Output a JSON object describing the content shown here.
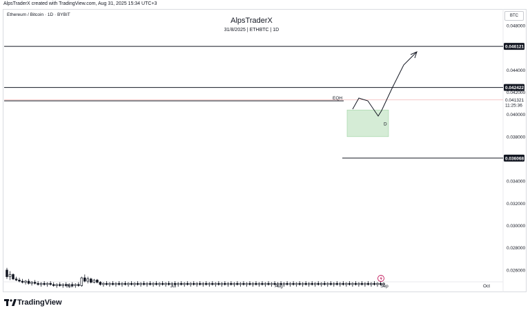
{
  "header": {
    "attribution": "AlpsTraderX created with TradingView.com, Aug 31, 2025 15:34 UTC+3",
    "symbol_line": "Ethereum / Bitcoin · 1D · BYBIT",
    "chart_title": "AlpsTraderX",
    "chart_subtitle": "31/8/2025 | ETHBTC | 1D",
    "currency_label": "BTC"
  },
  "footer": {
    "brand": "TradingView",
    "logo_text": "17"
  },
  "colors": {
    "up": "#131722",
    "down": "#131722",
    "zone_fill": "#d5ecd6",
    "zone_border": "#9fd3a3",
    "level_line": "#131722",
    "current_price_line": "#f4b6b6"
  },
  "chart_data": {
    "type": "candlestick",
    "y_axis": {
      "min": 0.025,
      "max": 0.0493,
      "ticks": [
        "0.048000",
        "0.044000",
        "0.042000",
        "0.040000",
        "0.038000",
        "0.034000",
        "0.032000",
        "0.030000",
        "0.028000",
        "0.026000"
      ]
    },
    "x_axis": {
      "ticks": [
        "Jun",
        "Jul",
        "Aug",
        "Sep",
        "Oct"
      ]
    },
    "levels": [
      {
        "value": 0.046121,
        "label": "0.046121"
      },
      {
        "value": 0.042422,
        "label": "0.042422"
      },
      {
        "value": 0.036068,
        "label": "0.036068"
      }
    ],
    "current_price": {
      "value": 0.041321,
      "label": "0.041321",
      "countdown": "11:25:36"
    },
    "eqh": {
      "label": "EQH",
      "value": 0.04122
    },
    "zone": {
      "label": "D",
      "from": 0.038,
      "to": 0.0404
    },
    "candles": [
      {
        "o": 0.026,
        "h": 0.0262,
        "l": 0.0252,
        "c": 0.0254
      },
      {
        "o": 0.0254,
        "h": 0.0259,
        "l": 0.0251,
        "c": 0.0256
      },
      {
        "o": 0.0256,
        "h": 0.0257,
        "l": 0.0251,
        "c": 0.0252
      },
      {
        "o": 0.0252,
        "h": 0.0254,
        "l": 0.025,
        "c": 0.0251
      },
      {
        "o": 0.0251,
        "h": 0.0253,
        "l": 0.0249,
        "c": 0.025
      },
      {
        "o": 0.025,
        "h": 0.0252,
        "l": 0.0248,
        "c": 0.0249
      },
      {
        "o": 0.0249,
        "h": 0.0251,
        "l": 0.0247,
        "c": 0.025
      },
      {
        "o": 0.025,
        "h": 0.0252,
        "l": 0.0247,
        "c": 0.0248
      },
      {
        "o": 0.0248,
        "h": 0.025,
        "l": 0.0246,
        "c": 0.0249
      },
      {
        "o": 0.0249,
        "h": 0.0251,
        "l": 0.0247,
        "c": 0.0248
      },
      {
        "o": 0.0248,
        "h": 0.025,
        "l": 0.0246,
        "c": 0.0247
      },
      {
        "o": 0.0247,
        "h": 0.0249,
        "l": 0.0245,
        "c": 0.0248
      },
      {
        "o": 0.0248,
        "h": 0.025,
        "l": 0.0246,
        "c": 0.0247
      },
      {
        "o": 0.0247,
        "h": 0.0249,
        "l": 0.0245,
        "c": 0.0248
      },
      {
        "o": 0.0248,
        "h": 0.025,
        "l": 0.0246,
        "c": 0.0247
      },
      {
        "o": 0.0247,
        "h": 0.0249,
        "l": 0.0245,
        "c": 0.0246
      },
      {
        "o": 0.0246,
        "h": 0.0248,
        "l": 0.0244,
        "c": 0.0247
      },
      {
        "o": 0.0247,
        "h": 0.0249,
        "l": 0.0245,
        "c": 0.0246
      },
      {
        "o": 0.0246,
        "h": 0.0248,
        "l": 0.0244,
        "c": 0.0247
      },
      {
        "o": 0.0247,
        "h": 0.0249,
        "l": 0.0245,
        "c": 0.0246
      },
      {
        "o": 0.0246,
        "h": 0.0248,
        "l": 0.0244,
        "c": 0.0247
      },
      {
        "o": 0.0247,
        "h": 0.0249,
        "l": 0.0245,
        "c": 0.0246
      },
      {
        "o": 0.0246,
        "h": 0.0248,
        "l": 0.0244,
        "c": 0.0247
      },
      {
        "o": 0.0247,
        "h": 0.0249,
        "l": 0.0245,
        "c": 0.0246
      },
      {
        "o": 0.0246,
        "h": 0.0254,
        "l": 0.0245,
        "c": 0.0253
      },
      {
        "o": 0.0253,
        "h": 0.0256,
        "l": 0.0249,
        "c": 0.025
      },
      {
        "o": 0.025,
        "h": 0.0254,
        "l": 0.0248,
        "c": 0.0252
      },
      {
        "o": 0.0252,
        "h": 0.0253,
        "l": 0.0248,
        "c": 0.0249
      },
      {
        "o": 0.0249,
        "h": 0.0252,
        "l": 0.0248,
        "c": 0.0251
      },
      {
        "o": 0.0251,
        "h": 0.0252,
        "l": 0.0248,
        "c": 0.0249
      },
      {
        "o": 0.0249,
        "h": 0.025,
        "l": 0.0246,
        "c": 0.0247
      },
      {
        "o": 0.0247,
        "h": 0.0249,
        "l": 0.0245,
        "c": 0.0248
      },
      {
        "o": 0.0248,
        "h": 0.025,
        "l": 0.0246,
        "c": 0.0247
      },
      {
        "o": 0.0247,
        "h": 0.0249,
        "l": 0.0245,
        "c": 0.0248
      },
      {
        "o": 0.0248,
        "h": 0.025,
        "l": 0.0246,
        "c": 0.0247
      },
      {
        "o": 0.0247,
        "h": 0.0249,
        "l": 0.0245,
        "c": 0.0248
      },
      {
        "o": 0.0248,
        "h": 0.025,
        "l": 0.0246,
        "c": 0.0247
      },
      {
        "o": 0.0247,
        "h": 0.0249,
        "l": 0.0245,
        "c": 0.0248
      },
      {
        "o": 0.0248,
        "h": 0.025,
        "l": 0.0246,
        "c": 0.0247
      },
      {
        "o": 0.0247,
        "h": 0.0249,
        "l": 0.0245,
        "c": 0.0248
      },
      {
        "o": 0.0248,
        "h": 0.025,
        "l": 0.0246,
        "c": 0.0247
      },
      {
        "o": 0.0247,
        "h": 0.0249,
        "l": 0.0245,
        "c": 0.0248
      },
      {
        "o": 0.0248,
        "h": 0.025,
        "l": 0.0246,
        "c": 0.0247
      },
      {
        "o": 0.0247,
        "h": 0.0249,
        "l": 0.0245,
        "c": 0.0248
      },
      {
        "o": 0.0248,
        "h": 0.025,
        "l": 0.0246,
        "c": 0.0247
      },
      {
        "o": 0.0247,
        "h": 0.0249,
        "l": 0.0245,
        "c": 0.0248
      },
      {
        "o": 0.0248,
        "h": 0.025,
        "l": 0.0246,
        "c": 0.0247
      },
      {
        "o": 0.0247,
        "h": 0.0249,
        "l": 0.0245,
        "c": 0.0248
      },
      {
        "o": 0.0248,
        "h": 0.025,
        "l": 0.0246,
        "c": 0.0247
      },
      {
        "o": 0.0247,
        "h": 0.0249,
        "l": 0.0245,
        "c": 0.0248
      },
      {
        "o": 0.0248,
        "h": 0.025,
        "l": 0.0246,
        "c": 0.0247
      },
      {
        "o": 0.0247,
        "h": 0.0249,
        "l": 0.0245,
        "c": 0.0248
      },
      {
        "o": 0.0248,
        "h": 0.025,
        "l": 0.0246,
        "c": 0.0247
      },
      {
        "o": 0.0247,
        "h": 0.0249,
        "l": 0.0245,
        "c": 0.0248
      },
      {
        "o": 0.0248,
        "h": 0.025,
        "l": 0.0246,
        "c": 0.0247
      },
      {
        "o": 0.0247,
        "h": 0.0249,
        "l": 0.0245,
        "c": 0.0248
      },
      {
        "o": 0.0248,
        "h": 0.025,
        "l": 0.0246,
        "c": 0.0247
      },
      {
        "o": 0.0247,
        "h": 0.0249,
        "l": 0.0245,
        "c": 0.0248
      },
      {
        "o": 0.0248,
        "h": 0.025,
        "l": 0.0246,
        "c": 0.0247
      },
      {
        "o": 0.0247,
        "h": 0.0249,
        "l": 0.0245,
        "c": 0.0248
      },
      {
        "o": 0.0248,
        "h": 0.025,
        "l": 0.0246,
        "c": 0.0247
      },
      {
        "o": 0.0247,
        "h": 0.0249,
        "l": 0.0245,
        "c": 0.0248
      },
      {
        "o": 0.0248,
        "h": 0.025,
        "l": 0.0246,
        "c": 0.0247
      },
      {
        "o": 0.0247,
        "h": 0.0249,
        "l": 0.0245,
        "c": 0.0248
      },
      {
        "o": 0.0248,
        "h": 0.025,
        "l": 0.0246,
        "c": 0.0247
      },
      {
        "o": 0.0247,
        "h": 0.0249,
        "l": 0.0245,
        "c": 0.0248
      },
      {
        "o": 0.0248,
        "h": 0.025,
        "l": 0.0246,
        "c": 0.0247
      },
      {
        "o": 0.0247,
        "h": 0.0249,
        "l": 0.0245,
        "c": 0.0248
      },
      {
        "o": 0.0248,
        "h": 0.025,
        "l": 0.0246,
        "c": 0.0247
      },
      {
        "o": 0.0247,
        "h": 0.0249,
        "l": 0.0245,
        "c": 0.0248
      },
      {
        "o": 0.0248,
        "h": 0.025,
        "l": 0.0246,
        "c": 0.0247
      },
      {
        "o": 0.0247,
        "h": 0.0249,
        "l": 0.0245,
        "c": 0.0248
      },
      {
        "o": 0.0248,
        "h": 0.025,
        "l": 0.0246,
        "c": 0.0247
      },
      {
        "o": 0.0247,
        "h": 0.0249,
        "l": 0.0245,
        "c": 0.0248
      },
      {
        "o": 0.0248,
        "h": 0.025,
        "l": 0.0246,
        "c": 0.0247
      },
      {
        "o": 0.0247,
        "h": 0.0249,
        "l": 0.0245,
        "c": 0.0248
      },
      {
        "o": 0.0248,
        "h": 0.025,
        "l": 0.0246,
        "c": 0.0247
      },
      {
        "o": 0.0247,
        "h": 0.0249,
        "l": 0.0245,
        "c": 0.0248
      },
      {
        "o": 0.0248,
        "h": 0.025,
        "l": 0.0246,
        "c": 0.0247
      },
      {
        "o": 0.0247,
        "h": 0.0249,
        "l": 0.0245,
        "c": 0.0248
      },
      {
        "o": 0.0248,
        "h": 0.025,
        "l": 0.0246,
        "c": 0.0247
      },
      {
        "o": 0.0247,
        "h": 0.0249,
        "l": 0.0245,
        "c": 0.0248
      },
      {
        "o": 0.0248,
        "h": 0.025,
        "l": 0.0246,
        "c": 0.0247
      },
      {
        "o": 0.0247,
        "h": 0.0249,
        "l": 0.0245,
        "c": 0.0248
      },
      {
        "o": 0.0248,
        "h": 0.025,
        "l": 0.0246,
        "c": 0.0247
      },
      {
        "o": 0.0247,
        "h": 0.0249,
        "l": 0.0245,
        "c": 0.0248
      },
      {
        "o": 0.0248,
        "h": 0.025,
        "l": 0.0246,
        "c": 0.0247
      },
      {
        "o": 0.0247,
        "h": 0.0249,
        "l": 0.0245,
        "c": 0.0248
      },
      {
        "o": 0.0248,
        "h": 0.025,
        "l": 0.0246,
        "c": 0.0247
      },
      {
        "o": 0.0247,
        "h": 0.0249,
        "l": 0.0245,
        "c": 0.0248
      },
      {
        "o": 0.0248,
        "h": 0.025,
        "l": 0.0246,
        "c": 0.0247
      },
      {
        "o": 0.0247,
        "h": 0.0249,
        "l": 0.0245,
        "c": 0.0248
      },
      {
        "o": 0.0248,
        "h": 0.025,
        "l": 0.0246,
        "c": 0.0247
      },
      {
        "o": 0.0247,
        "h": 0.0249,
        "l": 0.0245,
        "c": 0.0248
      },
      {
        "o": 0.0248,
        "h": 0.025,
        "l": 0.0246,
        "c": 0.0247
      },
      {
        "o": 0.0247,
        "h": 0.0249,
        "l": 0.0245,
        "c": 0.0248
      },
      {
        "o": 0.0248,
        "h": 0.025,
        "l": 0.0246,
        "c": 0.0247
      },
      {
        "o": 0.0247,
        "h": 0.0249,
        "l": 0.0245,
        "c": 0.0248
      },
      {
        "o": 0.0248,
        "h": 0.025,
        "l": 0.0246,
        "c": 0.0247
      },
      {
        "o": 0.0247,
        "h": 0.0249,
        "l": 0.0245,
        "c": 0.0248
      },
      {
        "o": 0.0248,
        "h": 0.025,
        "l": 0.0246,
        "c": 0.0247
      },
      {
        "o": 0.0247,
        "h": 0.0249,
        "l": 0.0245,
        "c": 0.0248
      },
      {
        "o": 0.0248,
        "h": 0.025,
        "l": 0.0246,
        "c": 0.0247
      },
      {
        "o": 0.0247,
        "h": 0.0249,
        "l": 0.0245,
        "c": 0.0248
      },
      {
        "o": 0.0248,
        "h": 0.025,
        "l": 0.0246,
        "c": 0.0247
      },
      {
        "o": 0.0247,
        "h": 0.0249,
        "l": 0.0245,
        "c": 0.0248
      },
      {
        "o": 0.0248,
        "h": 0.025,
        "l": 0.0246,
        "c": 0.0247
      },
      {
        "o": 0.0247,
        "h": 0.0249,
        "l": 0.0245,
        "c": 0.0248
      },
      {
        "o": 0.0248,
        "h": 0.025,
        "l": 0.0246,
        "c": 0.0247
      },
      {
        "o": 0.0247,
        "h": 0.0249,
        "l": 0.0245,
        "c": 0.0248
      },
      {
        "o": 0.0248,
        "h": 0.025,
        "l": 0.0246,
        "c": 0.0247
      },
      {
        "o": 0.0247,
        "h": 0.0249,
        "l": 0.0245,
        "c": 0.0248
      },
      {
        "o": 0.0248,
        "h": 0.025,
        "l": 0.0246,
        "c": 0.0247
      },
      {
        "o": 0.0247,
        "h": 0.0249,
        "l": 0.0245,
        "c": 0.0248
      },
      {
        "o": 0.0248,
        "h": 0.025,
        "l": 0.0246,
        "c": 0.0247
      },
      {
        "o": 0.0247,
        "h": 0.0249,
        "l": 0.0245,
        "c": 0.0248
      },
      {
        "o": 0.0248,
        "h": 0.025,
        "l": 0.0246,
        "c": 0.0247
      },
      {
        "o": 0.0247,
        "h": 0.0249,
        "l": 0.0245,
        "c": 0.0248
      },
      {
        "o": 0.0248,
        "h": 0.025,
        "l": 0.0246,
        "c": 0.0247
      },
      {
        "o": 0.0247,
        "h": 0.0249,
        "l": 0.0245,
        "c": 0.0248
      },
      {
        "o": 0.0248,
        "h": 0.025,
        "l": 0.0246,
        "c": 0.0247
      },
      {
        "o": 0.0247,
        "h": 0.0249,
        "l": 0.0245,
        "c": 0.0248
      }
    ]
  }
}
